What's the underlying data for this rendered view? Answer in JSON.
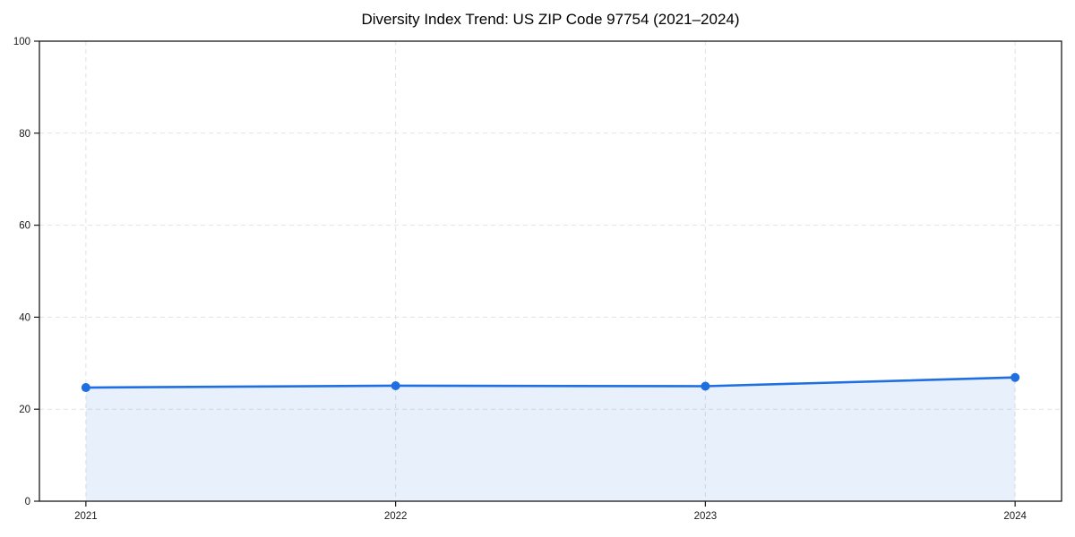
{
  "chart_data": {
    "type": "line",
    "title": "Diversity Index Trend: US ZIP Code 97754 (2021–2024)",
    "xlabel": "",
    "ylabel": "",
    "x": [
      2021,
      2022,
      2023,
      2024
    ],
    "categories": [
      "2021",
      "2022",
      "2023",
      "2024"
    ],
    "series": [
      {
        "name": "Diversity Index",
        "values": [
          24.7,
          25.1,
          25.0,
          26.9
        ]
      }
    ],
    "ylim": [
      0,
      100
    ],
    "xlim": [
      2020.85,
      2024.15
    ],
    "yticks": [
      0,
      20,
      40,
      60,
      80,
      100
    ],
    "xticks": [
      "2021",
      "2022",
      "2023",
      "2024"
    ],
    "grid": true,
    "grid_style": "dashed",
    "legend_position": "none",
    "area_fill_between": [
      2021,
      2024
    ],
    "marker": "circle",
    "colors": {
      "line": "#1f6fe0",
      "marker": "#1f6fe0",
      "fill": "#1f6fe0",
      "fill_opacity": 0.1,
      "grid": "#e2e2e2",
      "spine": "#1a1a1a",
      "tick_label": "#1a1a1a",
      "title": "#000000",
      "background": "#ffffff"
    }
  }
}
